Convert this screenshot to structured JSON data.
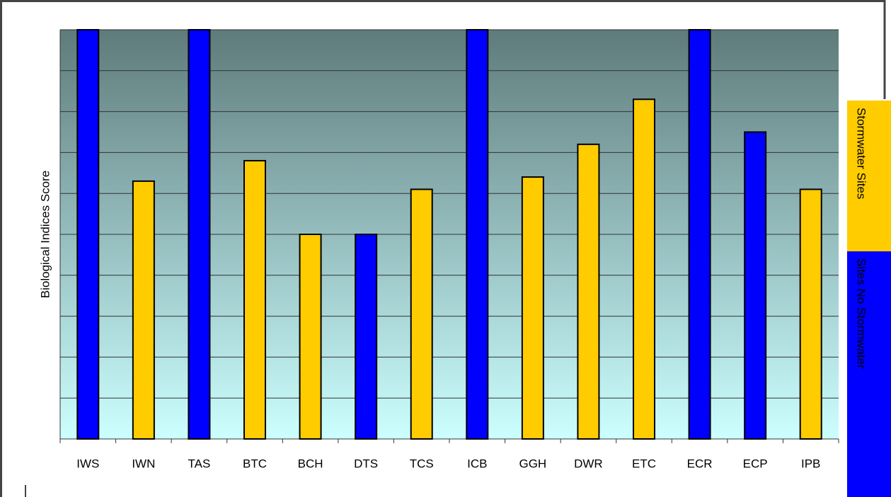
{
  "chart_data": {
    "type": "bar",
    "y_label": "Biological Indices Score",
    "categories": [
      "IWS",
      "IWN",
      "TAS",
      "BTC",
      "BCH",
      "DTS",
      "TCS",
      "ICB",
      "GGH",
      "DWR",
      "ETC",
      "ECR",
      "ECP",
      "IPB"
    ],
    "series": [
      {
        "name": "Stormwater Sites",
        "color": "#ffcc00",
        "values": [
          null,
          6.3,
          null,
          6.8,
          5.0,
          null,
          6.1,
          null,
          6.4,
          7.2,
          8.3,
          null,
          null,
          6.1
        ]
      },
      {
        "name": "Sites No Stormwater",
        "color": "#0000ff",
        "values": [
          10,
          null,
          10,
          null,
          null,
          5.0,
          null,
          10,
          null,
          null,
          null,
          10,
          7.5,
          null
        ]
      }
    ],
    "ylim": [
      0,
      10
    ],
    "ygrid": [
      1,
      2,
      3,
      4,
      5,
      6,
      7,
      8,
      9,
      10
    ]
  }
}
